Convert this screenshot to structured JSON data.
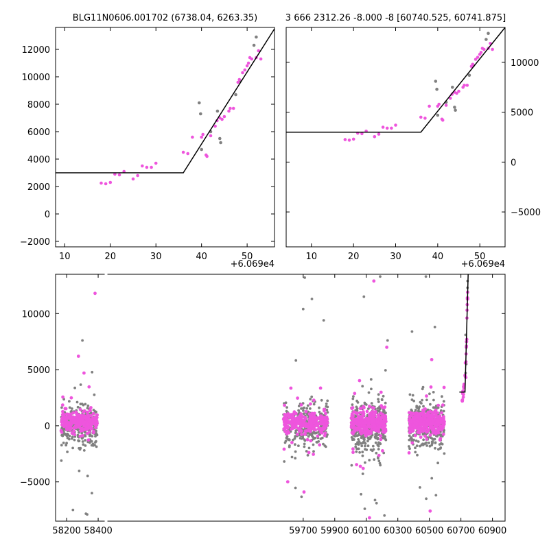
{
  "colors": {
    "highlight": "#ee55dd",
    "background_points": "#808080",
    "model_line": "#000000"
  },
  "chart_data": [
    {
      "id": "top-left",
      "type": "scatter",
      "title": "BLG11N0606.001702 (6738.04, 6263.35)",
      "x_offset_label": "+6.069e4",
      "xlim": [
        8,
        56
      ],
      "ylim": [
        -2400,
        13600
      ],
      "x_ticks": [
        10,
        20,
        30,
        40,
        50
      ],
      "y_ticks": [
        -2000,
        0,
        2000,
        4000,
        6000,
        8000,
        10000,
        12000
      ],
      "y_axis_side": "left",
      "model_line": [
        [
          8,
          3000
        ],
        [
          36,
          3000
        ],
        [
          56,
          13500
        ]
      ],
      "series": [
        {
          "color_key": "highlight",
          "points": [
            [
              18,
              2250
            ],
            [
              19,
              2200
            ],
            [
              20,
              2300
            ],
            [
              21,
              2900
            ],
            [
              22,
              2850
            ],
            [
              23,
              3100
            ],
            [
              25,
              2550
            ],
            [
              26,
              2800
            ],
            [
              27,
              3500
            ],
            [
              28,
              3400
            ],
            [
              29,
              3400
            ],
            [
              30,
              3700
            ],
            [
              36,
              4500
            ],
            [
              37,
              4400
            ],
            [
              38,
              5600
            ],
            [
              40,
              5600
            ],
            [
              40.3,
              5800
            ],
            [
              41,
              4300
            ],
            [
              41.2,
              4200
            ],
            [
              42,
              5700
            ],
            [
              43,
              6400
            ],
            [
              43.4,
              6800
            ],
            [
              44,
              7000
            ],
            [
              44.5,
              6900
            ],
            [
              45,
              7100
            ],
            [
              46,
              7500
            ],
            [
              46.3,
              7700
            ],
            [
              47,
              7700
            ],
            [
              48,
              9600
            ],
            [
              48.3,
              9800
            ],
            [
              49,
              10300
            ],
            [
              49.5,
              10500
            ],
            [
              50,
              10800
            ],
            [
              50.3,
              11000
            ],
            [
              50.6,
              11400
            ],
            [
              51,
              11300
            ],
            [
              52,
              11400
            ],
            [
              52.5,
              11900
            ],
            [
              53,
              11300
            ]
          ]
        },
        {
          "color_key": "background_points",
          "points": [
            [
              39.5,
              8100
            ],
            [
              39.8,
              7300
            ],
            [
              40,
              4700
            ],
            [
              42,
              6000
            ],
            [
              43.5,
              7500
            ],
            [
              44,
              5500
            ],
            [
              44.2,
              5200
            ],
            [
              48.5,
              9700
            ],
            [
              51.5,
              12300
            ],
            [
              52,
              12900
            ],
            [
              47.5,
              8700
            ]
          ]
        }
      ]
    },
    {
      "id": "top-right",
      "type": "scatter",
      "title": "3 666 2312.26 -8.000 -8 [60740.525, 60741.875]",
      "x_offset_label": "+6.069e4",
      "xlim": [
        4,
        56
      ],
      "ylim": [
        -8500,
        13500
      ],
      "x_ticks": [
        10,
        20,
        30,
        40,
        50
      ],
      "y_ticks": [
        -5000,
        0,
        5000,
        10000
      ],
      "y_axis_side": "right",
      "model_line": [
        [
          4,
          3000
        ],
        [
          36,
          3000
        ],
        [
          56,
          13500
        ]
      ],
      "series": [
        {
          "color_key": "highlight",
          "points": [
            [
              18,
              2250
            ],
            [
              19,
              2200
            ],
            [
              20,
              2300
            ],
            [
              21,
              2900
            ],
            [
              22,
              2850
            ],
            [
              23,
              3100
            ],
            [
              25,
              2550
            ],
            [
              26,
              2800
            ],
            [
              27,
              3500
            ],
            [
              28,
              3400
            ],
            [
              29,
              3400
            ],
            [
              30,
              3700
            ],
            [
              36,
              4500
            ],
            [
              37,
              4400
            ],
            [
              38,
              5600
            ],
            [
              40,
              5600
            ],
            [
              40.3,
              5800
            ],
            [
              41,
              4300
            ],
            [
              41.2,
              4200
            ],
            [
              42,
              5700
            ],
            [
              43,
              6400
            ],
            [
              43.4,
              6800
            ],
            [
              44,
              7000
            ],
            [
              44.5,
              6900
            ],
            [
              45,
              7100
            ],
            [
              46,
              7500
            ],
            [
              46.3,
              7700
            ],
            [
              47,
              7700
            ],
            [
              48,
              9600
            ],
            [
              48.3,
              9800
            ],
            [
              49,
              10300
            ],
            [
              49.5,
              10500
            ],
            [
              50,
              10800
            ],
            [
              50.3,
              11000
            ],
            [
              50.6,
              11400
            ],
            [
              51,
              11300
            ],
            [
              52,
              11400
            ],
            [
              52.5,
              11900
            ],
            [
              53,
              11300
            ]
          ]
        },
        {
          "color_key": "background_points",
          "points": [
            [
              39.5,
              8100
            ],
            [
              39.8,
              7300
            ],
            [
              40,
              4700
            ],
            [
              42,
              6000
            ],
            [
              43.5,
              7500
            ],
            [
              44,
              5500
            ],
            [
              44.2,
              5200
            ],
            [
              48.5,
              9700
            ],
            [
              51.5,
              12300
            ],
            [
              52,
              12900
            ],
            [
              47.5,
              8700
            ]
          ]
        }
      ]
    },
    {
      "id": "bottom",
      "type": "scatter",
      "title": "",
      "xlim": [
        58130,
        60980
      ],
      "ylim": [
        -8500,
        13500
      ],
      "x_ticks": [
        58200,
        58400,
        59700,
        59900,
        60100,
        60300,
        60500,
        60700,
        60900
      ],
      "y_ticks": [
        -5000,
        0,
        5000,
        10000
      ],
      "y_axis_side": "left",
      "broken_axis_after": 58450,
      "model_line": [
        [
          60690,
          3000
        ],
        [
          60726,
          3000
        ],
        [
          60746,
          13500
        ]
      ],
      "seasons": [
        {
          "start": 58165,
          "end": 58395,
          "gray": 290,
          "pink": 260,
          "spread": 750
        },
        {
          "start": 59575,
          "end": 59855,
          "gray": 310,
          "pink": 290,
          "spread": 850
        },
        {
          "start": 60005,
          "end": 60225,
          "gray": 390,
          "pink": 290,
          "spread": 950
        },
        {
          "start": 60370,
          "end": 60595,
          "gray": 320,
          "pink": 280,
          "spread": 850
        }
      ],
      "outliers_highlight": [
        [
          58275,
          6200
        ],
        [
          58310,
          4700
        ],
        [
          58380,
          11800
        ],
        [
          59705,
          -5900
        ],
        [
          60148,
          12900
        ],
        [
          60230,
          7000
        ],
        [
          60505,
          -7600
        ],
        [
          60515,
          5900
        ],
        [
          60120,
          -8200
        ],
        [
          60080,
          -3800
        ]
      ],
      "outliers_gray": [
        [
          58240,
          -7500
        ],
        [
          58300,
          7600
        ],
        [
          58330,
          -7900
        ],
        [
          58360,
          -6000
        ],
        [
          59710,
          13200
        ],
        [
          59700,
          10400
        ],
        [
          59830,
          9400
        ],
        [
          59755,
          11300
        ],
        [
          60085,
          11500
        ],
        [
          60188,
          13300
        ],
        [
          60090,
          -7400
        ],
        [
          60165,
          -6900
        ],
        [
          60215,
          -8000
        ],
        [
          60535,
          8800
        ],
        [
          60478,
          13300
        ],
        [
          60480,
          -6500
        ],
        [
          60440,
          -5500
        ],
        [
          60390,
          8400
        ],
        [
          60235,
          7600
        ]
      ],
      "rise": {
        "start": 60708,
        "end": 60743,
        "highlight": [
          [
            60708,
            2250
          ],
          [
            60709,
            2200
          ],
          [
            60710,
            2300
          ],
          [
            60711,
            2900
          ],
          [
            60712,
            2850
          ],
          [
            60713,
            3100
          ],
          [
            60715,
            2550
          ],
          [
            60716,
            2800
          ],
          [
            60717,
            3500
          ],
          [
            60718,
            3400
          ],
          [
            60719,
            3400
          ],
          [
            60720,
            3700
          ],
          [
            60726,
            4500
          ],
          [
            60727,
            4400
          ],
          [
            60728,
            5600
          ],
          [
            60730,
            5600
          ],
          [
            60731,
            4300
          ],
          [
            60732,
            5700
          ],
          [
            60733,
            6400
          ],
          [
            60734,
            7000
          ],
          [
            60735,
            7100
          ],
          [
            60736,
            7500
          ],
          [
            60737,
            7700
          ],
          [
            60738,
            9600
          ],
          [
            60739,
            10300
          ],
          [
            60740,
            10800
          ],
          [
            60740.6,
            11400
          ],
          [
            60741,
            11300
          ],
          [
            60742,
            11400
          ],
          [
            60742.5,
            11900
          ],
          [
            60743,
            11300
          ]
        ],
        "gray": [
          [
            60729.5,
            8100
          ],
          [
            60730,
            4700
          ],
          [
            60733.5,
            7500
          ],
          [
            60734,
            5500
          ],
          [
            60741.5,
            12300
          ],
          [
            60742,
            12900
          ]
        ]
      }
    }
  ]
}
